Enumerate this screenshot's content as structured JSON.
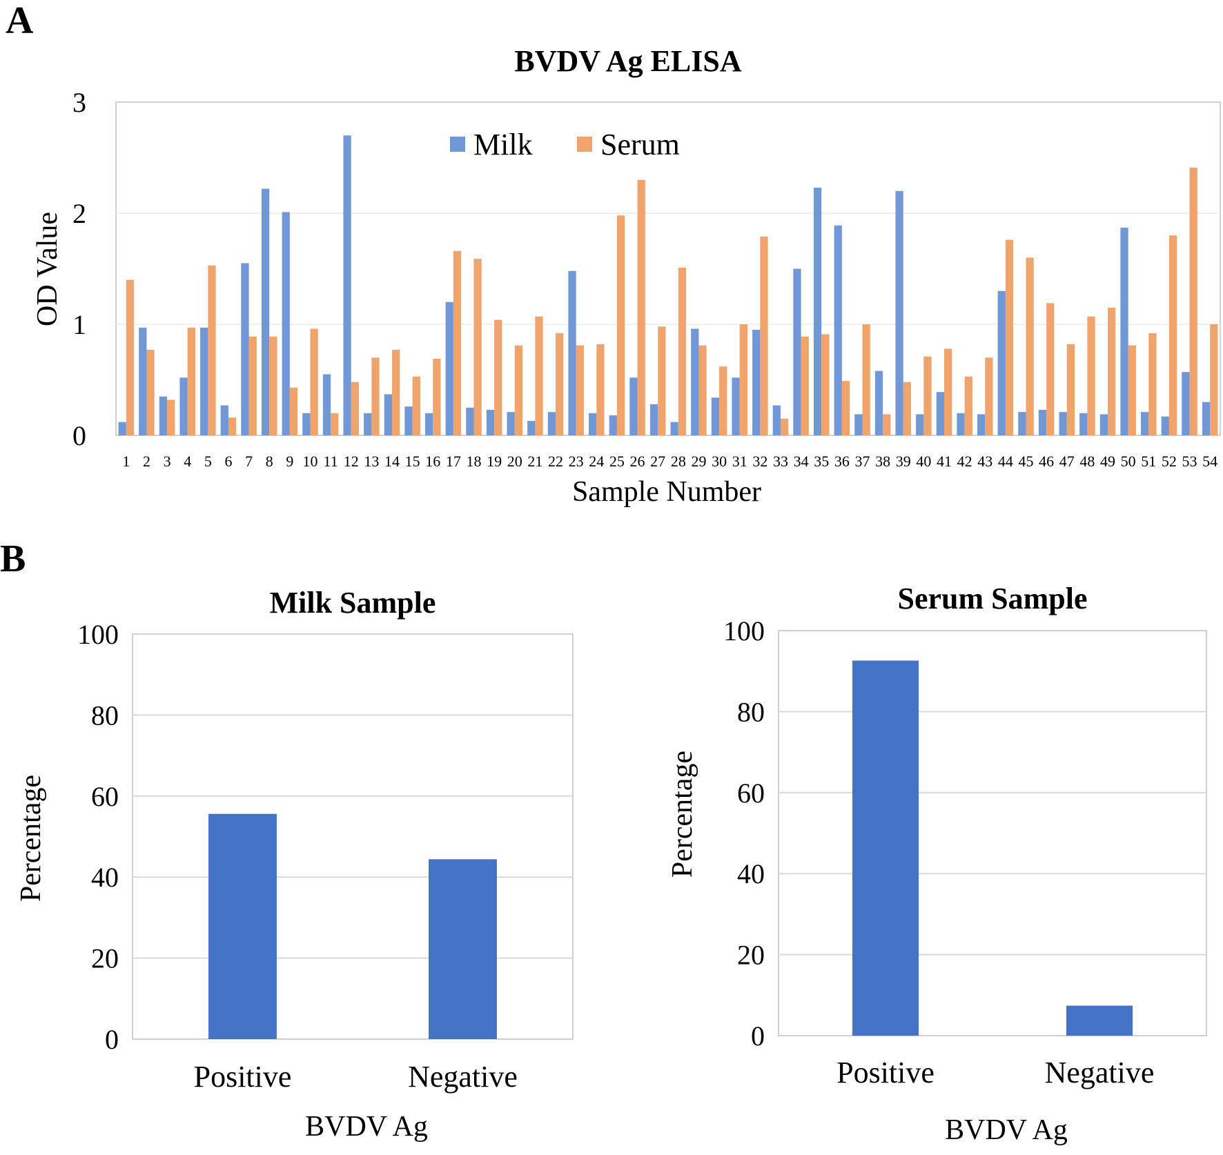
{
  "panels": {
    "a_letter": "A",
    "b_letter": "B"
  },
  "colors": {
    "milk": "#7198d6",
    "serum": "#f0a36b",
    "bar_b": "#4472c4",
    "grid": "#d9d9d9",
    "frame": "#d0d0d0"
  },
  "chart_data": [
    {
      "type": "bar",
      "title": "BVDV Ag ELISA",
      "xlabel": "Sample Number",
      "ylabel": "OD Value",
      "ylim": [
        0,
        3
      ],
      "yticks": [
        "0",
        "1",
        "2",
        "3"
      ],
      "legend_position": "top-center",
      "categories": [
        "1",
        "2",
        "3",
        "4",
        "5",
        "6",
        "7",
        "8",
        "9",
        "10",
        "11",
        "12",
        "13",
        "14",
        "15",
        "16",
        "17",
        "18",
        "19",
        "20",
        "21",
        "22",
        "23",
        "24",
        "25",
        "26",
        "27",
        "28",
        "29",
        "30",
        "31",
        "32",
        "33",
        "34",
        "35",
        "36",
        "37",
        "38",
        "39",
        "40",
        "41",
        "42",
        "43",
        "44",
        "45",
        "46",
        "47",
        "48",
        "49",
        "50",
        "51",
        "52",
        "53",
        "54"
      ],
      "series": [
        {
          "name": "Milk",
          "values": [
            0.12,
            0.97,
            0.35,
            0.52,
            0.97,
            0.27,
            1.55,
            2.22,
            2.01,
            0.2,
            0.55,
            2.7,
            0.2,
            0.37,
            0.26,
            0.2,
            1.2,
            0.25,
            0.23,
            0.21,
            0.13,
            0.21,
            1.48,
            0.2,
            0.18,
            0.52,
            0.28,
            0.12,
            0.96,
            0.34,
            0.52,
            0.95,
            0.27,
            1.5,
            2.23,
            1.89,
            0.19,
            0.58,
            2.2,
            0.19,
            0.39,
            0.2,
            0.19,
            1.3,
            0.21,
            0.23,
            0.21,
            0.2,
            0.19,
            1.87,
            0.21,
            0.17,
            0.57,
            0.3
          ]
        },
        {
          "name": "Serum",
          "values": [
            1.4,
            0.77,
            0.32,
            0.97,
            1.53,
            0.16,
            0.89,
            0.89,
            0.43,
            0.96,
            0.2,
            0.48,
            0.7,
            0.77,
            0.53,
            0.69,
            1.66,
            1.59,
            1.04,
            0.81,
            1.07,
            0.92,
            0.81,
            0.82,
            1.98,
            2.3,
            0.98,
            1.51,
            0.81,
            0.62,
            1.0,
            1.79,
            0.15,
            0.89,
            0.91,
            0.49,
            1.0,
            0.19,
            0.48,
            0.71,
            0.78,
            0.53,
            0.7,
            1.76,
            1.6,
            1.19,
            0.82,
            1.07,
            1.15,
            0.81,
            0.92,
            1.8,
            2.41,
            1.0
          ]
        }
      ]
    },
    {
      "type": "bar",
      "title": "Milk Sample",
      "xlabel": "BVDV Ag",
      "ylabel": "Percentage",
      "ylim": [
        0,
        100
      ],
      "yticks": [
        "0",
        "20",
        "40",
        "60",
        "80",
        "100"
      ],
      "categories": [
        "Positive",
        "Negative"
      ],
      "values": [
        55.6,
        44.4
      ]
    },
    {
      "type": "bar",
      "title": "Serum Sample",
      "xlabel": "BVDV Ag",
      "ylabel": "Percentage",
      "ylim": [
        0,
        100
      ],
      "yticks": [
        "0",
        "20",
        "40",
        "60",
        "80",
        "100"
      ],
      "categories": [
        "Positive",
        "Negative"
      ],
      "values": [
        92.6,
        7.4
      ]
    }
  ]
}
